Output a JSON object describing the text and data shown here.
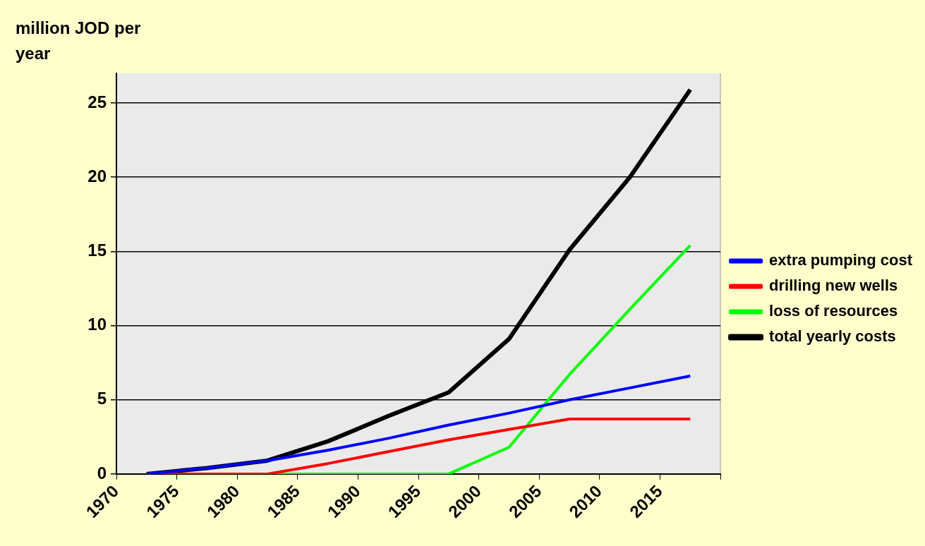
{
  "chart_data": {
    "type": "line",
    "ylabel": "million JOD per year",
    "x": [
      1972.5,
      1977.5,
      1982.5,
      1987.5,
      1992.5,
      1997.5,
      2002.5,
      2007.5,
      2012.5,
      2017.5
    ],
    "series": [
      {
        "name": "extra pumping cost",
        "color": "#0000ff",
        "values": [
          0,
          0.4,
          0.9,
          1.6,
          2.4,
          3.3,
          4.1,
          5.0,
          5.8,
          6.6
        ]
      },
      {
        "name": "drilling new wells",
        "color": "#ff0000",
        "values": [
          0,
          0,
          0,
          0.7,
          1.5,
          2.3,
          3.0,
          3.7,
          3.7,
          3.7
        ]
      },
      {
        "name": "loss of resources",
        "color": "#00ff00",
        "values": [
          0,
          0,
          0,
          0,
          0,
          0,
          1.8,
          6.7,
          11.1,
          15.4
        ]
      },
      {
        "name": "total yearly costs",
        "color": "#000000",
        "values": [
          0,
          0.4,
          0.9,
          2.2,
          3.9,
          5.5,
          9.1,
          15.1,
          20.0,
          25.9
        ]
      }
    ],
    "xlim": [
      1970,
      2020
    ],
    "xticks": [
      1970,
      1975,
      1980,
      1985,
      1990,
      1995,
      2000,
      2005,
      2010,
      2015,
      {
        "value": 2020,
        "label": null
      }
    ],
    "ylim": [
      0,
      27
    ],
    "yticks": [
      0,
      5,
      10,
      15,
      20,
      25
    ],
    "grid": "y",
    "legend": "right",
    "marker": "none",
    "line_style": "solid"
  }
}
